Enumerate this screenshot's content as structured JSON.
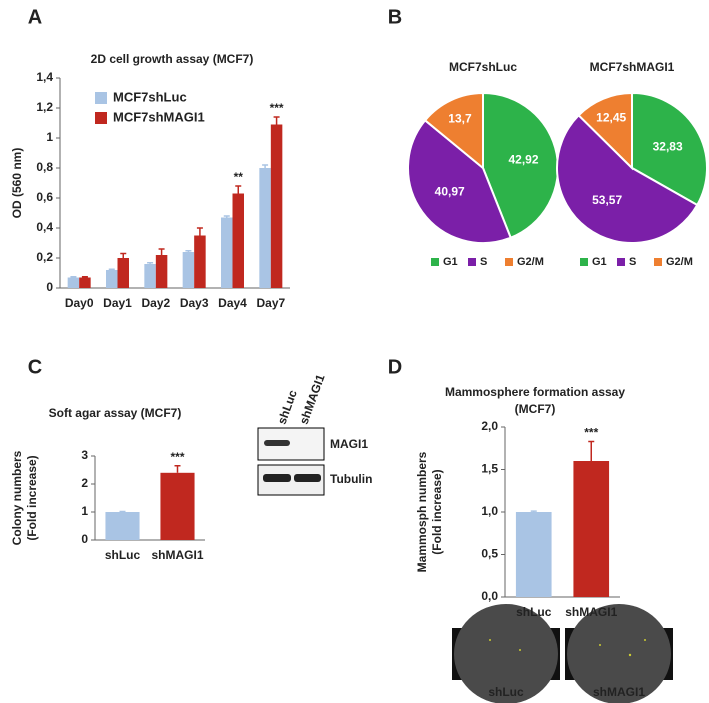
{
  "panels": [
    "A",
    "B",
    "C",
    "D"
  ],
  "chart_data": [
    {
      "type": "bar",
      "title": "2D cell growth assay (MCF7)",
      "ylabel": [
        "OD (560 nm)"
      ],
      "categories": [
        "Day0",
        "Day1",
        "Day2",
        "Day3",
        "Day4",
        "Day7"
      ],
      "series": [
        {
          "name": "MCF7shLuc",
          "color": "#a9c4e4",
          "values": [
            0.07,
            0.12,
            0.16,
            0.24,
            0.47,
            0.8
          ],
          "errors": [
            0.005,
            0.005,
            0.008,
            0.008,
            0.01,
            0.02
          ]
        },
        {
          "name": "MCF7shMAGI1",
          "color": "#c0281f",
          "values": [
            0.07,
            0.2,
            0.22,
            0.35,
            0.63,
            1.09
          ],
          "errors": [
            0.005,
            0.03,
            0.04,
            0.05,
            0.05,
            0.05
          ]
        }
      ],
      "annotations": [
        null,
        null,
        null,
        null,
        "**",
        "***"
      ],
      "ylim": [
        0,
        1.4
      ],
      "yticks": [
        0,
        {
          "value": 0.2,
          "label": "0,2"
        },
        {
          "value": 0.4,
          "label": "0,4"
        },
        {
          "value": 0.6,
          "label": "0,6"
        },
        {
          "value": 0.8,
          "label": "0,8"
        },
        1,
        {
          "value": 1.2,
          "label": "1,2"
        },
        {
          "value": 1.4,
          "label": "1,4"
        }
      ]
    },
    {
      "type": "pie",
      "title": "MCF7shLuc",
      "categories": [
        "G1",
        "S",
        "G2/M"
      ],
      "values": [
        42.92,
        40.97,
        13.7
      ],
      "value_labels": [
        "42,92",
        "40,97",
        "13,7"
      ],
      "colors": [
        "#2db34a",
        "#7b1fa8",
        "#ee7f30"
      ]
    },
    {
      "type": "pie",
      "title": "MCF7shMAGI1",
      "categories": [
        "G1",
        "S",
        "G2/M"
      ],
      "values": [
        32.83,
        53.57,
        12.45
      ],
      "value_labels": [
        "32,83",
        "53,57",
        "12,45"
      ],
      "colors": [
        "#2db34a",
        "#7b1fa8",
        "#ee7f30"
      ]
    },
    {
      "type": "bar",
      "title": [
        "Soft agar assay (MCF7)"
      ],
      "ylabel": [
        "Colony numbers",
        "(Fold increase)"
      ],
      "categories": [
        "shLuc",
        "shMAGI1"
      ],
      "values": [
        1,
        2.4
      ],
      "errors": [
        0.02,
        0.25
      ],
      "colors": [
        "#a9c4e4",
        "#c0281f"
      ],
      "annotations": [
        null,
        "***"
      ],
      "ylim": [
        0,
        3
      ],
      "yticks": [
        0,
        1,
        2,
        3
      ]
    },
    {
      "type": "bar",
      "title": [
        "Mammosphere formation assay",
        "(MCF7)"
      ],
      "ylabel": [
        "Mammosph numbers",
        "(Fold increase)"
      ],
      "categories": [
        "shLuc",
        "shMAGI1"
      ],
      "values": [
        1.0,
        1.6
      ],
      "errors": [
        0.01,
        0.23
      ],
      "colors": [
        "#a9c4e4",
        "#c0281f"
      ],
      "annotations": [
        null,
        "***"
      ],
      "ylim": [
        0,
        2
      ],
      "yticks": [
        {
          "value": 0,
          "label": "0,0"
        },
        {
          "value": 0.5,
          "label": "0,5"
        },
        {
          "value": 1,
          "label": "1,0"
        },
        {
          "value": 1.5,
          "label": "1,5"
        },
        {
          "value": 2,
          "label": "2,0"
        }
      ]
    }
  ],
  "blot": {
    "lanes": [
      "shLuc",
      "shMAGI1"
    ],
    "rows": [
      "MAGI1",
      "Tubulin"
    ]
  },
  "images": [
    "shLuc",
    "shMAGI1"
  ]
}
